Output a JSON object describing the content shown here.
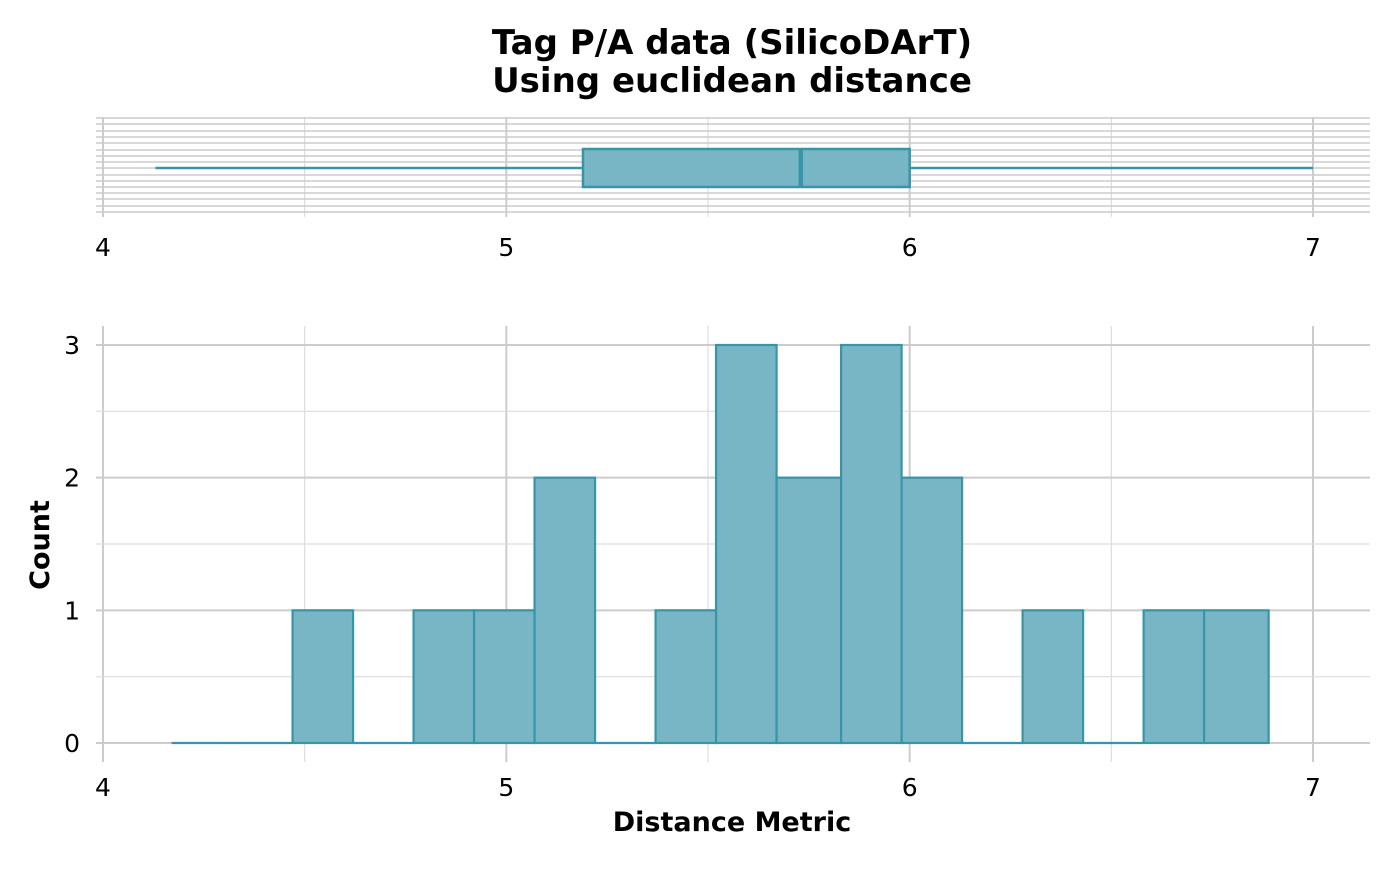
{
  "title_line1": "Tag P/A data (SilicoDArT)",
  "title_line2": "Using euclidean distance",
  "colors": {
    "fill": "#78b6c6",
    "stroke": "#3895a7",
    "grid_major": "#cccccc",
    "grid_minor": "#dddddd"
  },
  "chart_data": [
    {
      "type": "box",
      "orientation": "horizontal",
      "min": 4.13,
      "q1": 5.19,
      "median": 5.73,
      "q3": 6.0,
      "max": 7.0,
      "xlim": [
        4,
        7
      ],
      "x_ticks": [
        "4",
        "5",
        "6",
        "7"
      ],
      "grid": true
    },
    {
      "type": "bar",
      "subtype": "histogram",
      "bins": [
        {
          "x0": 4.17,
          "x1": 4.32,
          "count": 0
        },
        {
          "x0": 4.32,
          "x1": 4.47,
          "count": 0
        },
        {
          "x0": 4.47,
          "x1": 4.62,
          "count": 1
        },
        {
          "x0": 4.62,
          "x1": 4.77,
          "count": 0
        },
        {
          "x0": 4.77,
          "x1": 4.92,
          "count": 1
        },
        {
          "x0": 4.92,
          "x1": 5.07,
          "count": 1
        },
        {
          "x0": 5.07,
          "x1": 5.22,
          "count": 2
        },
        {
          "x0": 5.22,
          "x1": 5.37,
          "count": 0
        },
        {
          "x0": 5.37,
          "x1": 5.52,
          "count": 1
        },
        {
          "x0": 5.52,
          "x1": 5.67,
          "count": 3
        },
        {
          "x0": 5.67,
          "x1": 5.83,
          "count": 2
        },
        {
          "x0": 5.83,
          "x1": 5.98,
          "count": 3
        },
        {
          "x0": 5.98,
          "x1": 6.13,
          "count": 2
        },
        {
          "x0": 6.13,
          "x1": 6.28,
          "count": 0
        },
        {
          "x0": 6.28,
          "x1": 6.43,
          "count": 1
        },
        {
          "x0": 6.43,
          "x1": 6.58,
          "count": 0
        },
        {
          "x0": 6.58,
          "x1": 6.73,
          "count": 1
        },
        {
          "x0": 6.73,
          "x1": 6.89,
          "count": 1
        }
      ],
      "xlabel": "Distance Metric",
      "ylabel": "Count",
      "xlim": [
        4,
        7
      ],
      "ylim": [
        0,
        3
      ],
      "x_ticks": [
        "4",
        "5",
        "6",
        "7"
      ],
      "y_ticks": [
        "0",
        "1",
        "2",
        "3"
      ],
      "grid": true
    }
  ]
}
